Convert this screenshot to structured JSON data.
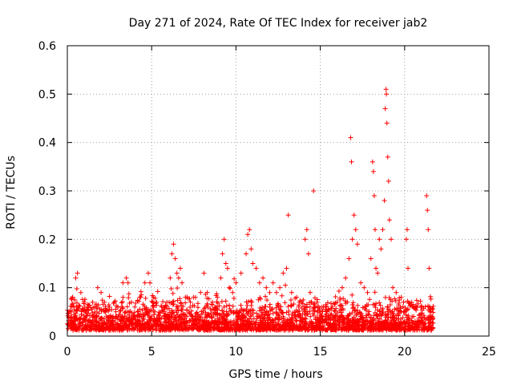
{
  "chart_data": {
    "type": "scatter",
    "title": "Day 271 of 2024, Rate Of TEC Index for receiver jab2",
    "xlabel": "GPS time / hours",
    "ylabel": "ROTI / TECUs",
    "xlim": [
      0,
      25
    ],
    "ylim": [
      0,
      0.6
    ],
    "xticks": [
      "0",
      "5",
      "10",
      "15",
      "20",
      "25"
    ],
    "yticks": [
      "0",
      "0.1",
      "0.2",
      "0.3",
      "0.4",
      "0.5",
      "0.6"
    ],
    "grid": true,
    "marker": "plus",
    "color": "#ff0000",
    "series": [
      {
        "name": "",
        "points": [
          [
            0.1,
            0.05
          ],
          [
            0.3,
            0.08
          ],
          [
            0.5,
            0.12
          ],
          [
            0.6,
            0.13
          ],
          [
            0.8,
            0.09
          ],
          [
            1.0,
            0.07
          ],
          [
            1.2,
            0.06
          ],
          [
            1.5,
            0.07
          ],
          [
            1.8,
            0.1
          ],
          [
            2.0,
            0.09
          ],
          [
            2.2,
            0.07
          ],
          [
            2.5,
            0.06
          ],
          [
            2.8,
            0.07
          ],
          [
            3.0,
            0.06
          ],
          [
            3.3,
            0.08
          ],
          [
            3.5,
            0.12
          ],
          [
            3.6,
            0.11
          ],
          [
            3.8,
            0.07
          ],
          [
            4.0,
            0.06
          ],
          [
            4.3,
            0.08
          ],
          [
            4.6,
            0.11
          ],
          [
            4.8,
            0.13
          ],
          [
            4.9,
            0.11
          ],
          [
            5.1,
            0.08
          ],
          [
            5.3,
            0.07
          ],
          [
            5.6,
            0.06
          ],
          [
            5.9,
            0.07
          ],
          [
            6.1,
            0.12
          ],
          [
            6.2,
            0.17
          ],
          [
            6.3,
            0.19
          ],
          [
            6.4,
            0.16
          ],
          [
            6.5,
            0.13
          ],
          [
            6.6,
            0.12
          ],
          [
            6.7,
            0.14
          ],
          [
            6.8,
            0.11
          ],
          [
            7.0,
            0.08
          ],
          [
            7.3,
            0.07
          ],
          [
            7.6,
            0.08
          ],
          [
            7.9,
            0.09
          ],
          [
            8.1,
            0.13
          ],
          [
            8.3,
            0.09
          ],
          [
            8.6,
            0.07
          ],
          [
            8.9,
            0.08
          ],
          [
            9.1,
            0.12
          ],
          [
            9.2,
            0.17
          ],
          [
            9.3,
            0.2
          ],
          [
            9.4,
            0.15
          ],
          [
            9.5,
            0.14
          ],
          [
            9.6,
            0.1
          ],
          [
            9.8,
            0.09
          ],
          [
            10.0,
            0.11
          ],
          [
            10.3,
            0.13
          ],
          [
            10.6,
            0.17
          ],
          [
            10.7,
            0.21
          ],
          [
            10.8,
            0.22
          ],
          [
            10.9,
            0.18
          ],
          [
            11.0,
            0.15
          ],
          [
            11.2,
            0.14
          ],
          [
            11.4,
            0.11
          ],
          [
            11.6,
            0.12
          ],
          [
            11.8,
            0.1
          ],
          [
            12.0,
            0.09
          ],
          [
            12.2,
            0.11
          ],
          [
            12.4,
            0.09
          ],
          [
            12.6,
            0.1
          ],
          [
            12.8,
            0.13
          ],
          [
            13.0,
            0.14
          ],
          [
            13.1,
            0.25
          ],
          [
            13.3,
            0.09
          ],
          [
            13.6,
            0.08
          ],
          [
            13.9,
            0.07
          ],
          [
            14.1,
            0.2
          ],
          [
            14.2,
            0.22
          ],
          [
            14.3,
            0.17
          ],
          [
            14.4,
            0.09
          ],
          [
            14.6,
            0.3
          ],
          [
            14.8,
            0.07
          ],
          [
            15.1,
            0.06
          ],
          [
            15.4,
            0.05
          ],
          [
            15.7,
            0.06
          ],
          [
            16.0,
            0.07
          ],
          [
            16.3,
            0.1
          ],
          [
            16.5,
            0.12
          ],
          [
            16.7,
            0.16
          ],
          [
            16.8,
            0.41
          ],
          [
            16.85,
            0.36
          ],
          [
            16.9,
            0.2
          ],
          [
            17.0,
            0.25
          ],
          [
            17.1,
            0.22
          ],
          [
            17.2,
            0.19
          ],
          [
            17.4,
            0.11
          ],
          [
            17.6,
            0.1
          ],
          [
            17.8,
            0.09
          ],
          [
            18.0,
            0.16
          ],
          [
            18.1,
            0.36
          ],
          [
            18.15,
            0.34
          ],
          [
            18.2,
            0.29
          ],
          [
            18.25,
            0.22
          ],
          [
            18.3,
            0.14
          ],
          [
            18.4,
            0.13
          ],
          [
            18.5,
            0.2
          ],
          [
            18.6,
            0.18
          ],
          [
            18.7,
            0.22
          ],
          [
            18.8,
            0.28
          ],
          [
            18.85,
            0.47
          ],
          [
            18.9,
            0.51
          ],
          [
            18.92,
            0.5
          ],
          [
            18.95,
            0.44
          ],
          [
            19.0,
            0.37
          ],
          [
            19.05,
            0.32
          ],
          [
            19.1,
            0.24
          ],
          [
            19.2,
            0.2
          ],
          [
            19.3,
            0.1
          ],
          [
            19.5,
            0.09
          ],
          [
            19.8,
            0.08
          ],
          [
            20.1,
            0.2
          ],
          [
            20.15,
            0.22
          ],
          [
            20.2,
            0.14
          ],
          [
            20.4,
            0.07
          ],
          [
            20.7,
            0.06
          ],
          [
            21.0,
            0.06
          ],
          [
            21.3,
            0.29
          ],
          [
            21.35,
            0.26
          ],
          [
            21.4,
            0.22
          ],
          [
            21.45,
            0.14
          ],
          [
            21.5,
            0.05
          ]
        ]
      }
    ]
  }
}
